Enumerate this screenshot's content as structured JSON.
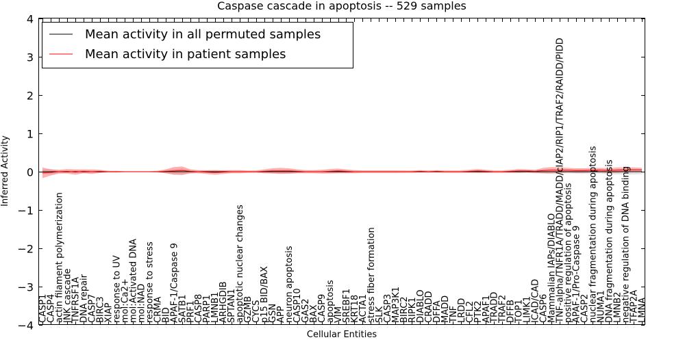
{
  "chart_data": {
    "type": "line",
    "title": "Caspase cascade in apoptosis -- 529 samples",
    "xlabel": "Cellular Entities",
    "ylabel": "Inferred Activity",
    "ylim": [
      -4,
      4
    ],
    "yticks": [
      -4,
      -3,
      -2,
      -1,
      0,
      1,
      2,
      3,
      4
    ],
    "ytick_labels": [
      "−4",
      "−3",
      "−2",
      "−1",
      "0",
      "1",
      "2",
      "3",
      "4"
    ],
    "legend_position": "top-left",
    "categories": [
      "CASP1",
      "CASP4",
      "actin filament polymerization",
      "JNK cascade",
      "TNFRSF1A",
      "DNA repair",
      "CASP7",
      "BIRC3",
      "XIAP",
      "response to UV",
      "mol:Ca2+",
      "mol:Activated DNA",
      "mol:NAD",
      "response to stress",
      "CRMA",
      "BID",
      "APAF-1/Caspase 9",
      "SATB1",
      "PRF1",
      "CASP8",
      "PARP1",
      "LMNB1",
      "ARHGDIB",
      "SPTAN1",
      "apoptotic nuclear changes",
      "GZMB",
      "CYCS",
      "p15 BID/BAX",
      "GSN",
      "APP",
      "neuron apoptosis",
      "CASP10",
      "GAS2",
      "BAX",
      "CASP9",
      "apoptosis",
      "VIM",
      "SREBF1",
      "KRT18",
      "ACTA1",
      "stress fiber formation",
      "SLK",
      "CASP3",
      "MAP3K1",
      "BIRC2",
      "RIPK1",
      "DIABLO",
      "CRADD",
      "DFFA",
      "MADD",
      "TNF",
      "LRDD",
      "CFL2",
      "PTK2",
      "APAF1",
      "TRADD",
      "TRAF2",
      "DFFB",
      "TOP1",
      "LIMK1",
      "ICAD/CAD",
      "CASP6",
      "Mammalian IAPs/DIABLO",
      "TNF-alpha/TNFR1A/TRADD/MADD/cIAP2/RIP1/TRAF2/RAIDD/PIDD",
      "positive regulation of apoptosis",
      "APAF-1/Pro-Caspase 9",
      "CASP2",
      "nuclear fragmentation during apoptosis",
      "NUMA1",
      "DNA fragmentation during apoptosis",
      "LMNB2",
      "negative regulation of DNA binding",
      "TFAP2A",
      "LMNA"
    ],
    "series": [
      {
        "name": "Mean activity in all permuted samples",
        "color": "#000000",
        "band_color": "#bbbbbb",
        "values": [
          0.0,
          0.0,
          0.0,
          0.0,
          0.0,
          0.0,
          0.0,
          0.0,
          0.0,
          0.0,
          0.0,
          0.0,
          0.0,
          0.0,
          0.0,
          0.0,
          0.0,
          0.0,
          0.0,
          0.0,
          0.0,
          0.0,
          0.0,
          0.0,
          0.0,
          0.0,
          0.0,
          0.0,
          0.0,
          0.0,
          0.0,
          0.0,
          0.0,
          0.0,
          0.0,
          0.0,
          0.0,
          0.0,
          0.0,
          0.0,
          0.0,
          0.0,
          0.0,
          0.0,
          0.0,
          0.0,
          0.0,
          0.0,
          0.0,
          0.0,
          0.0,
          0.0,
          0.0,
          0.0,
          0.0,
          0.0,
          0.0,
          0.0,
          0.0,
          0.0,
          0.0,
          0.0,
          0.0,
          0.0,
          0.0,
          0.0,
          0.0,
          0.0,
          0.0,
          0.0,
          0.0,
          0.0,
          0.0,
          0.0
        ],
        "spread": [
          0.06,
          0.07,
          0.04,
          0.03,
          0.04,
          0.04,
          0.03,
          0.03,
          0.02,
          0.02,
          0.01,
          0.01,
          0.01,
          0.01,
          0.02,
          0.04,
          0.07,
          0.09,
          0.05,
          0.03,
          0.03,
          0.04,
          0.03,
          0.03,
          0.03,
          0.02,
          0.02,
          0.03,
          0.04,
          0.05,
          0.06,
          0.04,
          0.03,
          0.03,
          0.03,
          0.03,
          0.04,
          0.04,
          0.03,
          0.03,
          0.03,
          0.03,
          0.03,
          0.03,
          0.02,
          0.02,
          0.02,
          0.02,
          0.02,
          0.02,
          0.02,
          0.02,
          0.02,
          0.03,
          0.03,
          0.02,
          0.02,
          0.02,
          0.03,
          0.03,
          0.04,
          0.05,
          0.06,
          0.05,
          0.04,
          0.05,
          0.05,
          0.05,
          0.05,
          0.06,
          0.07,
          0.07,
          0.07,
          0.06
        ]
      },
      {
        "name": "Mean activity in patient samples",
        "color": "#ff0000",
        "band_color": "#ff6666",
        "values": [
          -0.03,
          -0.02,
          0.0,
          0.01,
          -0.01,
          0.01,
          0.0,
          0.01,
          0.0,
          0.0,
          0.0,
          0.0,
          0.0,
          0.0,
          0.0,
          0.01,
          0.02,
          0.03,
          0.01,
          0.0,
          -0.01,
          -0.02,
          -0.01,
          0.0,
          0.0,
          0.0,
          0.0,
          0.01,
          0.02,
          0.02,
          0.02,
          0.01,
          0.0,
          0.0,
          0.0,
          0.01,
          0.02,
          0.01,
          0.0,
          0.0,
          0.0,
          0.0,
          0.0,
          0.0,
          0.0,
          0.0,
          0.01,
          0.0,
          0.01,
          0.0,
          0.0,
          0.0,
          0.01,
          0.02,
          0.01,
          0.0,
          0.0,
          0.01,
          0.02,
          0.02,
          0.01,
          0.03,
          0.04,
          0.04,
          0.04,
          0.03,
          0.03,
          0.04,
          0.04,
          0.03,
          0.04,
          0.05,
          0.05,
          0.05
        ],
        "spread": [
          0.14,
          0.08,
          0.05,
          0.06,
          0.07,
          0.05,
          0.06,
          0.04,
          0.02,
          0.02,
          0.01,
          0.01,
          0.01,
          0.01,
          0.02,
          0.05,
          0.1,
          0.11,
          0.05,
          0.04,
          0.05,
          0.06,
          0.05,
          0.04,
          0.04,
          0.03,
          0.03,
          0.05,
          0.07,
          0.08,
          0.07,
          0.05,
          0.04,
          0.04,
          0.05,
          0.06,
          0.06,
          0.05,
          0.04,
          0.03,
          0.03,
          0.03,
          0.03,
          0.03,
          0.03,
          0.03,
          0.03,
          0.03,
          0.03,
          0.03,
          0.03,
          0.03,
          0.04,
          0.05,
          0.04,
          0.03,
          0.03,
          0.04,
          0.05,
          0.04,
          0.04,
          0.07,
          0.08,
          0.07,
          0.06,
          0.06,
          0.06,
          0.06,
          0.06,
          0.06,
          0.07,
          0.06,
          0.06,
          0.05
        ]
      }
    ]
  }
}
